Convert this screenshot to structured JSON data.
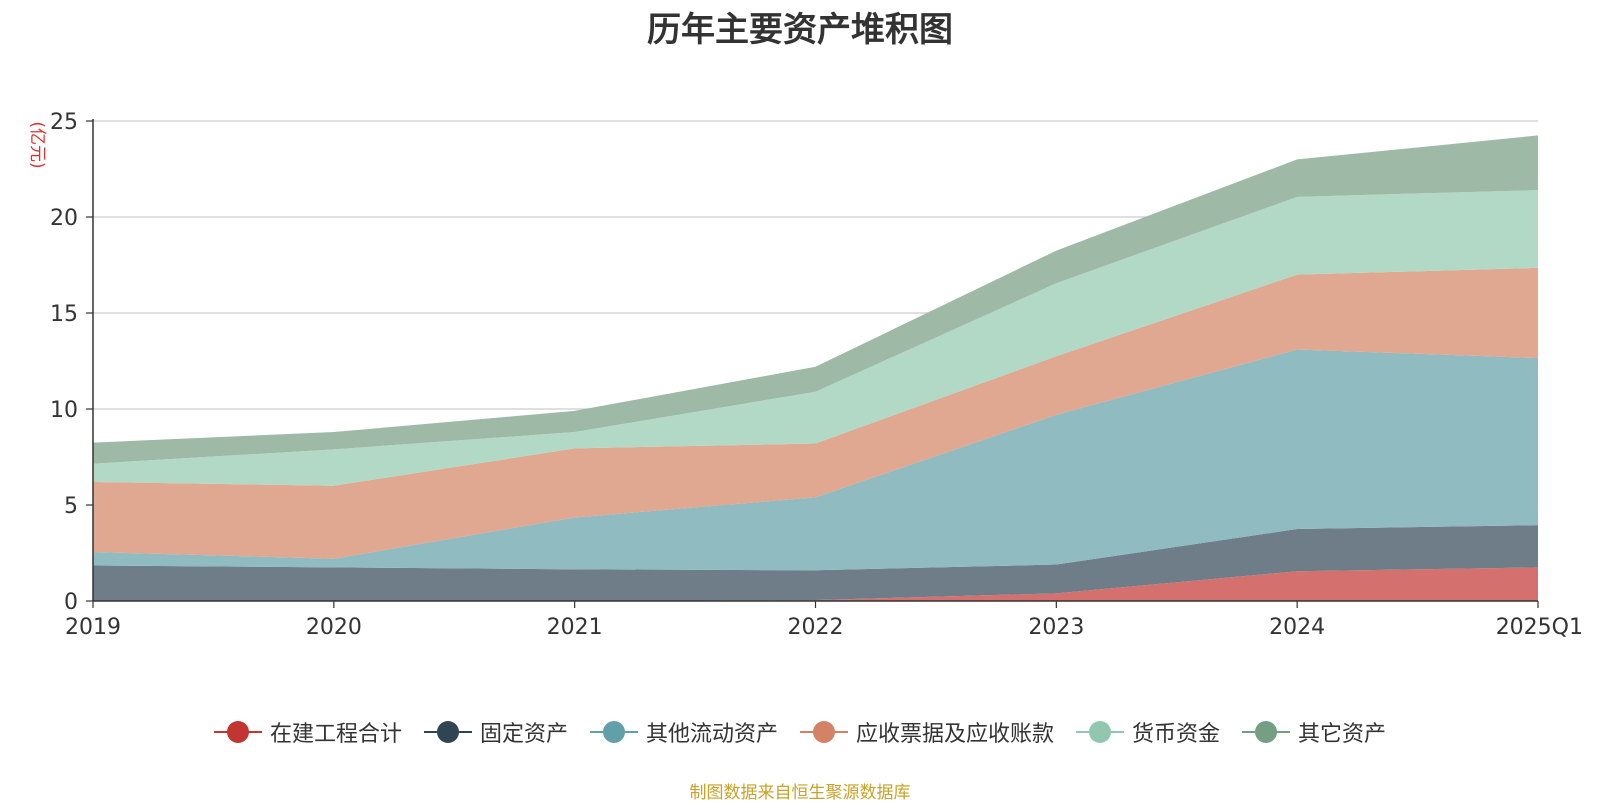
{
  "chart_data": {
    "type": "area",
    "stacked": true,
    "title": "历年主要资产堆积图",
    "ylabel": "(亿元)",
    "xlabel": "",
    "ylim": [
      0,
      25
    ],
    "yticks": [
      0,
      5,
      10,
      15,
      20,
      25
    ],
    "grid": true,
    "legend_position": "bottom",
    "categories": [
      "2019",
      "2020",
      "2021",
      "2022",
      "2023",
      "2024",
      "2025Q1"
    ],
    "series": [
      {
        "name": "在建工程合计",
        "color": "#c23531",
        "fill": "#d4716e",
        "values": [
          0.0,
          0.0,
          0.0,
          0.05,
          0.4,
          1.55,
          1.75
        ]
      },
      {
        "name": "固定资产",
        "color": "#2f4554",
        "fill": "#6e7d88",
        "values": [
          1.85,
          1.75,
          1.65,
          1.55,
          1.5,
          2.2,
          2.2
        ]
      },
      {
        "name": "其他流动资产",
        "color": "#61a0a8",
        "fill": "#90bbc1",
        "values": [
          0.7,
          0.45,
          2.7,
          3.8,
          7.8,
          9.35,
          8.7
        ]
      },
      {
        "name": "应收票据及应收账款",
        "color": "#d48265",
        "fill": "#e0a791",
        "values": [
          3.65,
          3.8,
          3.6,
          2.8,
          3.05,
          3.9,
          4.7
        ]
      },
      {
        "name": "货币资金",
        "color": "#91c7ae",
        "fill": "#b2d9c6",
        "values": [
          0.95,
          1.9,
          0.85,
          2.7,
          3.8,
          4.05,
          4.05
        ]
      },
      {
        "name": "其它资产",
        "color": "#749f83",
        "fill": "#9eb9a6",
        "values": [
          1.1,
          0.9,
          1.1,
          1.3,
          1.7,
          1.95,
          2.85
        ]
      }
    ],
    "source_note": "制图数据来自恒生聚源数据库",
    "source_color": "#c9a227",
    "ylabel_color": "#e03030"
  }
}
